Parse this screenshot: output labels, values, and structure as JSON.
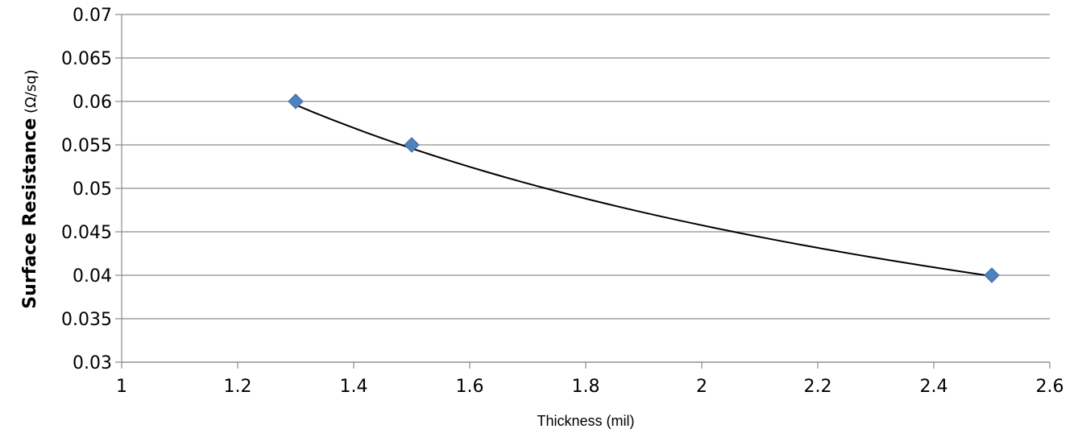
{
  "chart_data": {
    "type": "scatter",
    "title": "",
    "xlabel": "Thickness (mil)",
    "ylabel_main": "Surface Resistance",
    "ylabel_unit": " (Ω/sq)",
    "xlim": [
      1,
      2.6
    ],
    "ylim": [
      0.03,
      0.07
    ],
    "xticks": [
      "1",
      "1.2",
      "1.4",
      "1.6",
      "1.8",
      "2",
      "2.2",
      "2.4",
      "2.6"
    ],
    "yticks": [
      "0.03",
      "0.035",
      "0.04",
      "0.045",
      "0.05",
      "0.055",
      "0.06",
      "0.065",
      "0.07"
    ],
    "grid": true,
    "series": [
      {
        "x": [
          1.3,
          1.5,
          2.5
        ],
        "y": [
          0.06,
          0.055,
          0.04
        ],
        "marker": "diamond",
        "color": "#4F81BD"
      }
    ],
    "trendline": {
      "type": "power",
      "x": [
        1.3,
        2.5
      ],
      "y": [
        0.0596,
        0.0399
      ],
      "color": "#000000"
    }
  }
}
